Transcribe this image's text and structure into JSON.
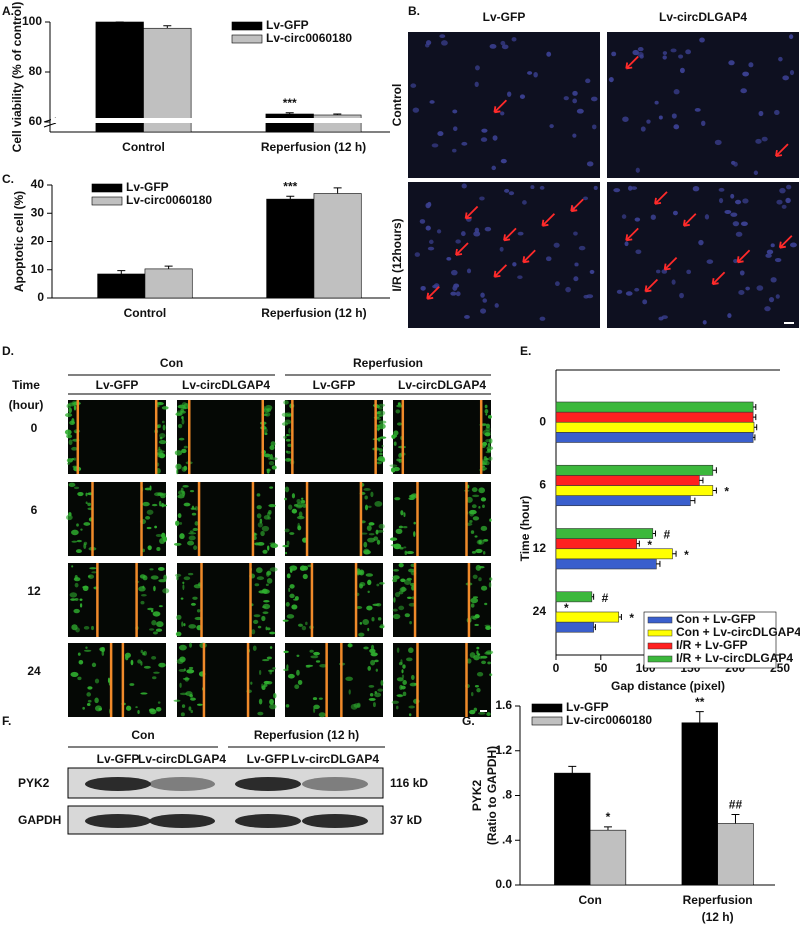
{
  "chart_data": [
    {
      "type": "bar",
      "panel": "A.",
      "ylabel": "Cell viability (% of control)",
      "categories": [
        "Control",
        "Reperfusion (12 h)"
      ],
      "series": [
        {
          "name": "Lv-GFP",
          "color": "#000000",
          "values": [
            100,
            63.2
          ],
          "errors": [
            0,
            0.5
          ]
        },
        {
          "name": "Lv-circ0060180",
          "color": "#c0c0c0",
          "values": [
            97.5,
            62.8
          ],
          "errors": [
            1,
            0.4
          ]
        }
      ],
      "ylim": [
        56,
        100
      ],
      "yticks": [
        60,
        80,
        100
      ],
      "annotations": [
        {
          "text": "***",
          "series": 0,
          "index": 1
        }
      ]
    },
    {
      "type": "bar",
      "panel": "C.",
      "ylabel": "Apoptotic cell (%)",
      "categories": [
        "Control",
        "Reperfusion (12 h)"
      ],
      "series": [
        {
          "name": "Lv-GFP",
          "color": "#000000",
          "values": [
            8.5,
            35
          ],
          "errors": [
            1.2,
            1
          ]
        },
        {
          "name": "Lv-circ0060180",
          "color": "#c0c0c0",
          "values": [
            10.3,
            37
          ],
          "errors": [
            1,
            2
          ]
        }
      ],
      "ylim": [
        0,
        40
      ],
      "yticks": [
        0,
        10,
        20,
        30,
        40
      ],
      "annotations": [
        {
          "text": "***",
          "series": 0,
          "index": 1
        }
      ]
    },
    {
      "type": "hbar",
      "panel": "E.",
      "ylabel": "Time (hour)",
      "xlabel": "Gap distance (pixel)",
      "categories": [
        "0",
        "6",
        "12",
        "24"
      ],
      "series": [
        {
          "name": "Con + Lv-GFP",
          "color": "#3a5fcd",
          "values": [
            220,
            150,
            112,
            42
          ],
          "errors": [
            2,
            5,
            4,
            2
          ]
        },
        {
          "name": "Con + Lv-circDLGAP4",
          "color": "#ffff00",
          "values": [
            221,
            175,
            130,
            70
          ],
          "errors": [
            3,
            4,
            4,
            3
          ]
        },
        {
          "name": "I/R + Lv-GFP",
          "color": "#ff2020",
          "values": [
            220,
            160,
            90,
            0
          ],
          "errors": [
            3,
            4,
            3,
            0
          ]
        },
        {
          "name": "I/R + Lv-circDLGAP4",
          "color": "#3cb83c",
          "values": [
            220,
            175,
            108,
            40
          ],
          "errors": [
            3,
            4,
            3,
            2
          ]
        }
      ],
      "xlim": [
        0,
        250
      ],
      "xticks": [
        0,
        50,
        100,
        150,
        200,
        250
      ],
      "annotations": [
        {
          "text": "*",
          "series": 1,
          "index": 1
        },
        {
          "text": "#",
          "series": 3,
          "index": 2
        },
        {
          "text": "*",
          "series": 2,
          "index": 2
        },
        {
          "text": "*",
          "series": 1,
          "index": 2
        },
        {
          "text": "#",
          "series": 3,
          "index": 3
        },
        {
          "text": "*",
          "series": 2,
          "index": 3
        },
        {
          "text": "*",
          "series": 1,
          "index": 3
        }
      ]
    },
    {
      "type": "bar",
      "panel": "G.",
      "ylabel": [
        "PYK2",
        "(Ratio to GAPDH)"
      ],
      "categories": [
        "Con",
        [
          "Reperfusion",
          "(12 h)"
        ]
      ],
      "series": [
        {
          "name": "Lv-GFP",
          "color": "#000000",
          "values": [
            1.0,
            1.45
          ],
          "errors": [
            0.06,
            0.1
          ]
        },
        {
          "name": "Lv-circ0060180",
          "color": "#c0c0c0",
          "values": [
            0.49,
            0.55
          ],
          "errors": [
            0.03,
            0.08
          ]
        }
      ],
      "ylim": [
        0,
        1.6
      ],
      "yticks": [
        {
          "value": 0,
          "label": "0.0"
        },
        {
          "value": 0.4,
          "label": ".4"
        },
        {
          "value": 0.8,
          "label": ".8"
        },
        {
          "value": 1.2,
          "label": "1.2"
        },
        {
          "value": 1.6,
          "label": "1.6"
        }
      ],
      "annotations": [
        {
          "text": "*",
          "series": 1,
          "index": 0
        },
        {
          "text": "**",
          "series": 0,
          "index": 1
        },
        {
          "text": "##",
          "series": 1,
          "index": 1
        }
      ]
    }
  ],
  "panel_b": {
    "label": "B.",
    "columns": [
      "Lv-GFP",
      "Lv-circDLGAP4"
    ],
    "rows": [
      "Control",
      "I/R (12hours)"
    ]
  },
  "panel_d": {
    "label": "D.",
    "groups": [
      "Con",
      "Reperfusion"
    ],
    "columns": [
      "Lv-GFP",
      "Lv-circDLGAP4",
      "Lv-GFP",
      "Lv-circDLGAP4"
    ],
    "time_header": [
      "Time",
      "(hour)"
    ],
    "times": [
      "0",
      "6",
      "12",
      "24"
    ]
  },
  "panel_f": {
    "label": "F.",
    "groups": [
      "Con",
      "Reperfusion (12 h)"
    ],
    "columns": [
      "Lv-GFP",
      "Lv-circDLGAP4",
      "Lv-GFP",
      "Lv-circDLGAP4"
    ],
    "proteins": [
      {
        "name": "PYK2",
        "size": "116 kD"
      },
      {
        "name": "GAPDH",
        "size": "37 kD"
      }
    ]
  }
}
